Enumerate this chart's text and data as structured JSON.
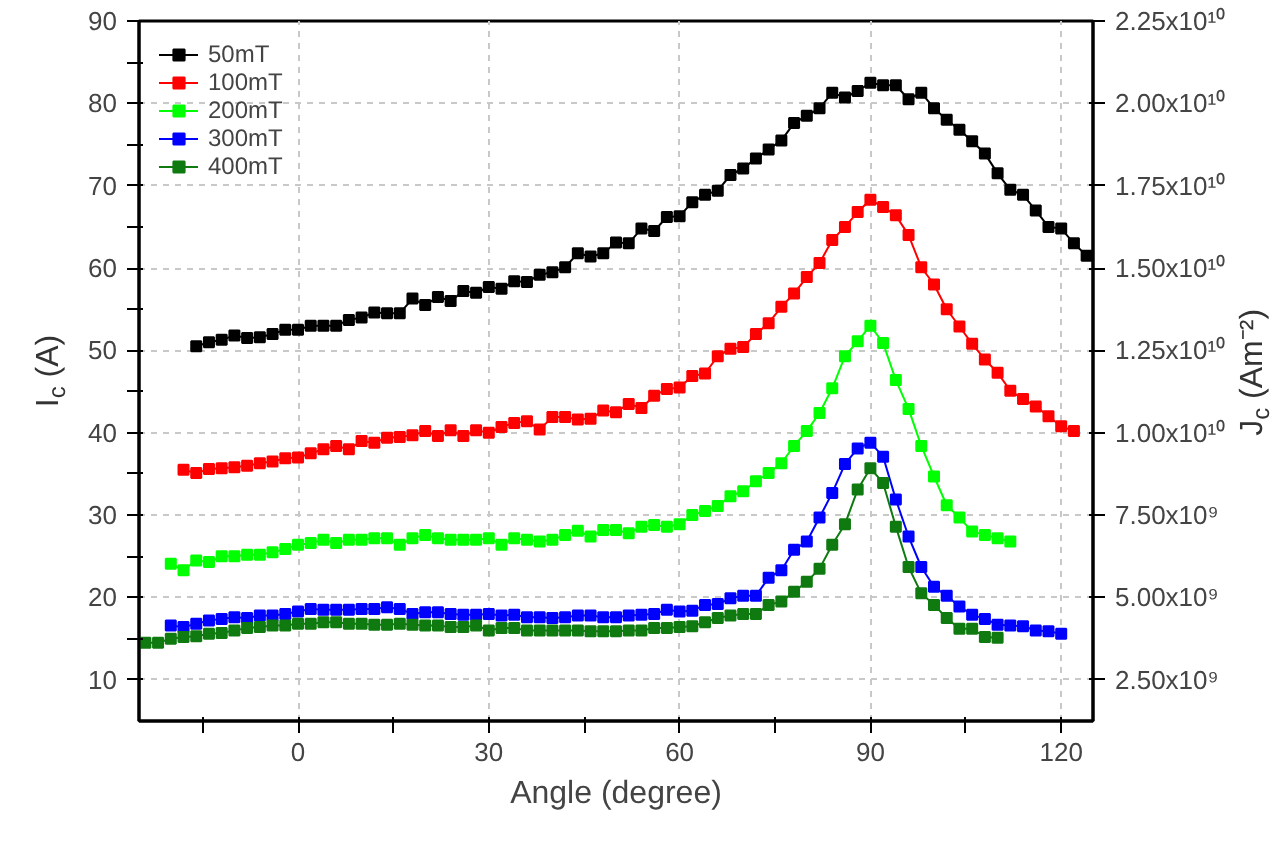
{
  "chart_data": {
    "type": "line",
    "xlabel": "Angle (degree)",
    "ylabel": "I$_{c}$ (A)",
    "y2label": "J$_{c}$ (Am⁻²)",
    "xlim": [
      -25,
      125
    ],
    "ylim": [
      5,
      90
    ],
    "y2lim": [
      1250000000,
      22500000000
    ],
    "xticks": [
      {
        "value": -15,
        "label": null
      },
      0,
      {
        "value": 15,
        "label": null
      },
      30,
      {
        "value": 45,
        "label": null
      },
      60,
      {
        "value": 75,
        "label": null
      },
      90,
      {
        "value": 105,
        "label": null
      },
      120
    ],
    "yticks": [
      10,
      {
        "value": 15,
        "label": null
      },
      20,
      {
        "value": 25,
        "label": null
      },
      30,
      {
        "value": 35,
        "label": null
      },
      40,
      {
        "value": 45,
        "label": null
      },
      50,
      {
        "value": 55,
        "label": null
      },
      60,
      {
        "value": 65,
        "label": null
      },
      70,
      {
        "value": 75,
        "label": null
      },
      80,
      {
        "value": 85,
        "label": null
      },
      90
    ],
    "y2ticks": [
      {
        "value": 2500000000,
        "label": "2.50x10⁹"
      },
      {
        "value": 5000000000,
        "label": "5.00x10⁹"
      },
      {
        "value": 7500000000,
        "label": "7.50x10⁹"
      },
      {
        "value": 10000000000,
        "label": "1.00x10¹⁰"
      },
      {
        "value": 12500000000,
        "label": "1.25x10¹⁰"
      },
      {
        "value": 15000000000,
        "label": "1.50x10¹⁰"
      },
      {
        "value": 17500000000,
        "label": "1.75x10¹⁰"
      },
      {
        "value": 20000000000,
        "label": "2.00x10¹⁰"
      },
      {
        "value": 22500000000,
        "label": "2.25x10¹⁰"
      }
    ],
    "grid": true,
    "legend": "top left",
    "marker": "square",
    "line_style": "solid",
    "series": [
      {
        "name": "50mT",
        "color": "#000000",
        "x": [
          -16,
          -14,
          -12,
          -10,
          -8,
          -6,
          -4,
          -2,
          0,
          2,
          4,
          6,
          8,
          10,
          12,
          14,
          16,
          18,
          20,
          22,
          24,
          26,
          28,
          30,
          32,
          34,
          36,
          38,
          40,
          42,
          44,
          46,
          48,
          50,
          52,
          54,
          56,
          58,
          60,
          62,
          64,
          66,
          68,
          70,
          72,
          74,
          76,
          78,
          80,
          82,
          84,
          86,
          88,
          90,
          92,
          94,
          96,
          98,
          100,
          102,
          104,
          106,
          108,
          110,
          112,
          114,
          116,
          118,
          120,
          122,
          124
        ],
        "values": [
          50.5,
          51,
          51.3,
          51.8,
          51.5,
          51.6,
          52,
          52.5,
          52.5,
          53,
          53,
          53,
          53.7,
          54,
          54.6,
          54.5,
          54.5,
          56.3,
          55.5,
          56.5,
          56,
          57.2,
          57,
          57.7,
          57.5,
          58.4,
          58.3,
          59.2,
          59.5,
          60.1,
          61.8,
          61.4,
          61.8,
          63.1,
          63,
          64.8,
          64.5,
          66.2,
          66.3,
          68,
          68.9,
          69.4,
          71.3,
          72.1,
          73.3,
          74.4,
          75.5,
          77.6,
          78.5,
          79.4,
          81.3,
          80.7,
          81.5,
          82.5,
          82.2,
          82.2,
          80.5,
          81.3,
          79.4,
          78,
          76.8,
          75.4,
          73.9,
          71.5,
          69.5,
          68.9,
          67,
          65,
          64.8,
          63,
          61.5
        ]
      },
      {
        "name": "100mT",
        "color": "#ff0000",
        "x": [
          -18,
          -16,
          -14,
          -12,
          -10,
          -8,
          -6,
          -4,
          -2,
          0,
          2,
          4,
          6,
          8,
          10,
          12,
          14,
          16,
          18,
          20,
          22,
          24,
          26,
          28,
          30,
          32,
          34,
          36,
          38,
          40,
          42,
          44,
          46,
          48,
          50,
          52,
          54,
          56,
          58,
          60,
          62,
          64,
          66,
          68,
          70,
          72,
          74,
          76,
          78,
          80,
          82,
          84,
          86,
          88,
          90,
          92,
          94,
          96,
          98,
          100,
          102,
          104,
          106,
          108,
          110,
          112,
          114,
          116,
          118,
          120,
          122
        ],
        "values": [
          35.5,
          35.1,
          35.6,
          35.7,
          35.8,
          36,
          36.3,
          36.5,
          36.9,
          37,
          37.5,
          38,
          38.4,
          38,
          39,
          38.8,
          39.4,
          39.5,
          39.7,
          40.2,
          39.6,
          40.3,
          39.6,
          40.3,
          40,
          40.7,
          41.2,
          41.4,
          40.4,
          41.9,
          41.9,
          41.6,
          41.7,
          42.7,
          42.5,
          43.5,
          43,
          44.5,
          45.3,
          45.5,
          46.9,
          47.2,
          49.3,
          50.2,
          50.4,
          52,
          53.3,
          55.3,
          56.9,
          58.9,
          60.6,
          63.4,
          65,
          66.8,
          68.3,
          67.4,
          66.4,
          64,
          60.1,
          58,
          55,
          52.9,
          50.8,
          48.9,
          47.3,
          45.1,
          44.1,
          43.2,
          42,
          40.8,
          40.2
        ]
      },
      {
        "name": "200mT",
        "color": "#00ff00",
        "x": [
          -20,
          -18,
          -16,
          -14,
          -12,
          -10,
          -8,
          -6,
          -4,
          -2,
          0,
          2,
          4,
          6,
          8,
          10,
          12,
          14,
          16,
          18,
          20,
          22,
          24,
          26,
          28,
          30,
          32,
          34,
          36,
          38,
          40,
          42,
          44,
          46,
          48,
          50,
          52,
          54,
          56,
          58,
          60,
          62,
          64,
          66,
          68,
          70,
          72,
          74,
          76,
          78,
          80,
          82,
          84,
          86,
          88,
          90,
          92,
          94,
          96,
          98,
          100,
          102,
          104,
          106,
          108,
          110,
          112
        ],
        "values": [
          24.1,
          23.3,
          24.5,
          24.3,
          25,
          25,
          25.2,
          25.2,
          25.5,
          25.9,
          26.4,
          26.6,
          27,
          26.6,
          27,
          27,
          27.2,
          27.2,
          26.4,
          27.2,
          27.6,
          27.2,
          27,
          27,
          27,
          27.2,
          26.4,
          27.2,
          27,
          26.8,
          27,
          27.6,
          28.1,
          27.4,
          28.2,
          28.2,
          27.8,
          28.6,
          28.8,
          28.6,
          28.9,
          30,
          30.5,
          31.1,
          32.3,
          32.9,
          34.1,
          35.1,
          36.3,
          38.4,
          40.2,
          42.4,
          45.4,
          49.3,
          51.1,
          53,
          50.9,
          46.4,
          42.9,
          38.4,
          34.7,
          31.2,
          29.7,
          28,
          27.6,
          27.2,
          26.8
        ]
      },
      {
        "name": "300mT",
        "color": "#0000ff",
        "x": [
          -20,
          -18,
          -16,
          -14,
          -12,
          -10,
          -8,
          -6,
          -4,
          -2,
          0,
          2,
          4,
          6,
          8,
          10,
          12,
          14,
          16,
          18,
          20,
          22,
          24,
          26,
          28,
          30,
          32,
          34,
          36,
          38,
          40,
          42,
          44,
          46,
          48,
          50,
          52,
          54,
          56,
          58,
          60,
          62,
          64,
          66,
          68,
          70,
          72,
          74,
          76,
          78,
          80,
          82,
          84,
          86,
          88,
          90,
          92,
          94,
          96,
          98,
          100,
          102,
          104,
          106,
          108,
          110,
          112,
          114,
          116,
          118,
          120
        ],
        "values": [
          16.6,
          16.4,
          16.8,
          17.2,
          17.4,
          17.6,
          17.5,
          17.8,
          17.8,
          18,
          18.3,
          18.6,
          18.5,
          18.5,
          18.5,
          18.6,
          18.6,
          18.8,
          18.6,
          18,
          18.2,
          18.2,
          18,
          17.9,
          17.9,
          18,
          17.8,
          17.9,
          17.6,
          17.6,
          17.5,
          17.6,
          17.8,
          17.8,
          17.6,
          17.6,
          17.8,
          17.9,
          18,
          18.5,
          18.3,
          18.4,
          19.1,
          19.2,
          19.9,
          20.2,
          20.2,
          22.4,
          23.3,
          25.8,
          26.8,
          29.7,
          32.7,
          36.2,
          38.1,
          38.8,
          37.1,
          31.9,
          27.4,
          23.7,
          21.3,
          20.2,
          18.9,
          17.9,
          17.4,
          16.7,
          16.6,
          16.5,
          16,
          15.9,
          15.6
        ]
      },
      {
        "name": "400mT",
        "color": "#0f7a0f",
        "x": [
          -24,
          -22,
          -20,
          -18,
          -16,
          -14,
          -12,
          -10,
          -8,
          -6,
          -4,
          -2,
          0,
          2,
          4,
          6,
          8,
          10,
          12,
          14,
          16,
          18,
          20,
          22,
          24,
          26,
          28,
          30,
          32,
          34,
          36,
          38,
          40,
          42,
          44,
          46,
          48,
          50,
          52,
          54,
          56,
          58,
          60,
          62,
          64,
          66,
          68,
          70,
          72,
          74,
          76,
          78,
          80,
          82,
          84,
          86,
          88,
          90,
          92,
          94,
          96,
          98,
          100,
          102,
          104,
          106,
          108,
          110
        ],
        "values": [
          14.5,
          14.5,
          15,
          15.2,
          15.3,
          15.6,
          15.7,
          16,
          16.3,
          16.4,
          16.6,
          16.6,
          16.8,
          16.8,
          17,
          17,
          16.8,
          16.8,
          16.7,
          16.7,
          16.8,
          16.7,
          16.6,
          16.6,
          16.4,
          16.4,
          16.6,
          16,
          16.3,
          16.3,
          16,
          16,
          16,
          16,
          16,
          15.9,
          15.9,
          15.9,
          16,
          16,
          16.3,
          16.3,
          16.4,
          16.5,
          17,
          17.5,
          17.8,
          18,
          18,
          19.1,
          19.5,
          20.7,
          21.9,
          23.5,
          26.4,
          28.9,
          33.1,
          35.7,
          33.9,
          28.6,
          23.7,
          20.5,
          19.1,
          17.5,
          16.2,
          16.2,
          15.2,
          15.1
        ]
      }
    ]
  }
}
